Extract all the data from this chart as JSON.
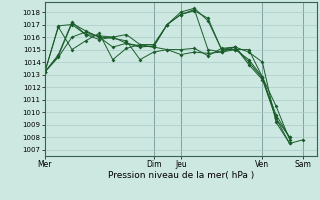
{
  "title": "Pression niveau de la mer( hPa )",
  "bg_color": "#cce8e0",
  "grid_color": "#aacccc",
  "line_color": "#1a5c2a",
  "ylim": [
    1006.5,
    1018.8
  ],
  "yticks": [
    1007,
    1008,
    1009,
    1010,
    1011,
    1012,
    1013,
    1014,
    1015,
    1016,
    1017,
    1018
  ],
  "xtick_labels": [
    "Mer",
    "Dim",
    "Jeu",
    "Ven",
    "Sam"
  ],
  "xtick_positions": [
    0,
    48,
    60,
    96,
    114
  ],
  "xlim": [
    0,
    120
  ],
  "series": [
    {
      "x": [
        0,
        6,
        12,
        18,
        24,
        30,
        36,
        42,
        48,
        54,
        60,
        66,
        72,
        78,
        84,
        90,
        96,
        102,
        108
      ],
      "y": [
        1013.2,
        1016.9,
        1017.0,
        1016.2,
        1016.1,
        1016.0,
        1015.5,
        1015.3,
        1015.2,
        1017.0,
        1017.8,
        1018.1,
        1017.5,
        1015.0,
        1015.0,
        1014.2,
        1012.8,
        1010.5,
        1007.8
      ]
    },
    {
      "x": [
        0,
        6,
        12,
        18,
        24,
        30,
        36,
        42,
        48,
        54,
        60,
        66,
        72,
        78,
        84,
        90,
        96,
        102,
        108
      ],
      "y": [
        1013.2,
        1014.5,
        1017.1,
        1016.5,
        1016.0,
        1015.2,
        1015.5,
        1015.2,
        1015.3,
        1017.0,
        1017.8,
        1018.2,
        1015.0,
        1014.8,
        1015.2,
        1014.0,
        1012.7,
        1009.8,
        1008.0
      ]
    },
    {
      "x": [
        0,
        6,
        12,
        18,
        24,
        30,
        36,
        42,
        48,
        54,
        60,
        66,
        72,
        78,
        84,
        90,
        96,
        102,
        108
      ],
      "y": [
        1013.2,
        1016.8,
        1015.0,
        1015.7,
        1016.3,
        1014.2,
        1015.1,
        1015.4,
        1015.2,
        1015.0,
        1014.6,
        1014.8,
        1014.7,
        1014.8,
        1015.0,
        1015.0,
        1012.8,
        1009.5,
        1008.0
      ]
    },
    {
      "x": [
        0,
        6,
        12,
        18,
        24,
        30,
        36,
        42,
        48,
        54,
        60,
        66,
        72,
        78,
        84,
        90,
        96,
        102,
        108
      ],
      "y": [
        1013.2,
        1014.6,
        1017.2,
        1016.2,
        1015.8,
        1016.0,
        1016.2,
        1015.4,
        1015.4,
        1017.0,
        1018.0,
        1018.3,
        1017.3,
        1015.0,
        1015.2,
        1014.8,
        1014.0,
        1009.2,
        1007.5
      ]
    },
    {
      "x": [
        0,
        6,
        12,
        18,
        24,
        30,
        36,
        42,
        48,
        54,
        60,
        66,
        72,
        78,
        84,
        90,
        96,
        102,
        108,
        114
      ],
      "y": [
        1013.2,
        1014.4,
        1016.0,
        1016.4,
        1016.0,
        1015.9,
        1015.7,
        1014.2,
        1014.8,
        1015.0,
        1015.0,
        1015.1,
        1014.5,
        1015.1,
        1015.2,
        1013.8,
        1012.6,
        1009.5,
        1007.5,
        1007.8
      ]
    }
  ]
}
